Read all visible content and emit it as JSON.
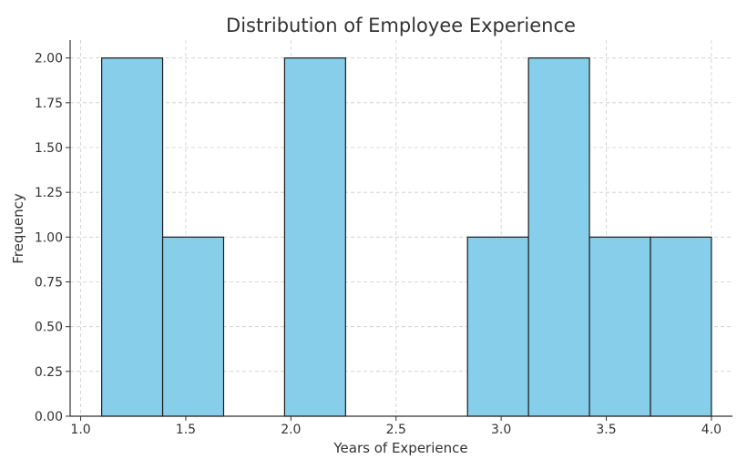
{
  "chart_data": {
    "type": "bar",
    "subtype": "histogram",
    "title": "Distribution of Employee Experience",
    "xlabel": "Years of Experience",
    "ylabel": "Frequency",
    "xlim": [
      0.95,
      4.1
    ],
    "ylim": [
      0,
      2.1
    ],
    "grid": true,
    "bar_color": "#87ceeb",
    "edge_color": "#1a1a1a",
    "x_ticks": [
      1.0,
      1.5,
      2.0,
      2.5,
      3.0,
      3.5,
      4.0
    ],
    "x_tick_labels": [
      "1.0",
      "1.5",
      "2.0",
      "2.5",
      "3.0",
      "3.5",
      "4.0"
    ],
    "y_ticks": [
      0,
      0.25,
      0.5,
      0.75,
      1.0,
      1.25,
      1.5,
      1.75,
      2.0
    ],
    "y_tick_labels": [
      "0.00",
      "0.25",
      "0.50",
      "0.75",
      "1.00",
      "1.25",
      "1.50",
      "1.75",
      "2.00"
    ],
    "bins": [
      {
        "x0": 1.1,
        "x1": 1.39,
        "value": 2
      },
      {
        "x0": 1.39,
        "x1": 1.68,
        "value": 1
      },
      {
        "x0": 1.68,
        "x1": 1.97,
        "value": 0
      },
      {
        "x0": 1.97,
        "x1": 2.26,
        "value": 2
      },
      {
        "x0": 2.26,
        "x1": 2.55,
        "value": 0
      },
      {
        "x0": 2.55,
        "x1": 2.84,
        "value": 0
      },
      {
        "x0": 2.84,
        "x1": 3.13,
        "value": 1
      },
      {
        "x0": 3.13,
        "x1": 3.42,
        "value": 2
      },
      {
        "x0": 3.42,
        "x1": 3.71,
        "value": 1
      },
      {
        "x0": 3.71,
        "x1": 4.0,
        "value": 1
      }
    ]
  }
}
